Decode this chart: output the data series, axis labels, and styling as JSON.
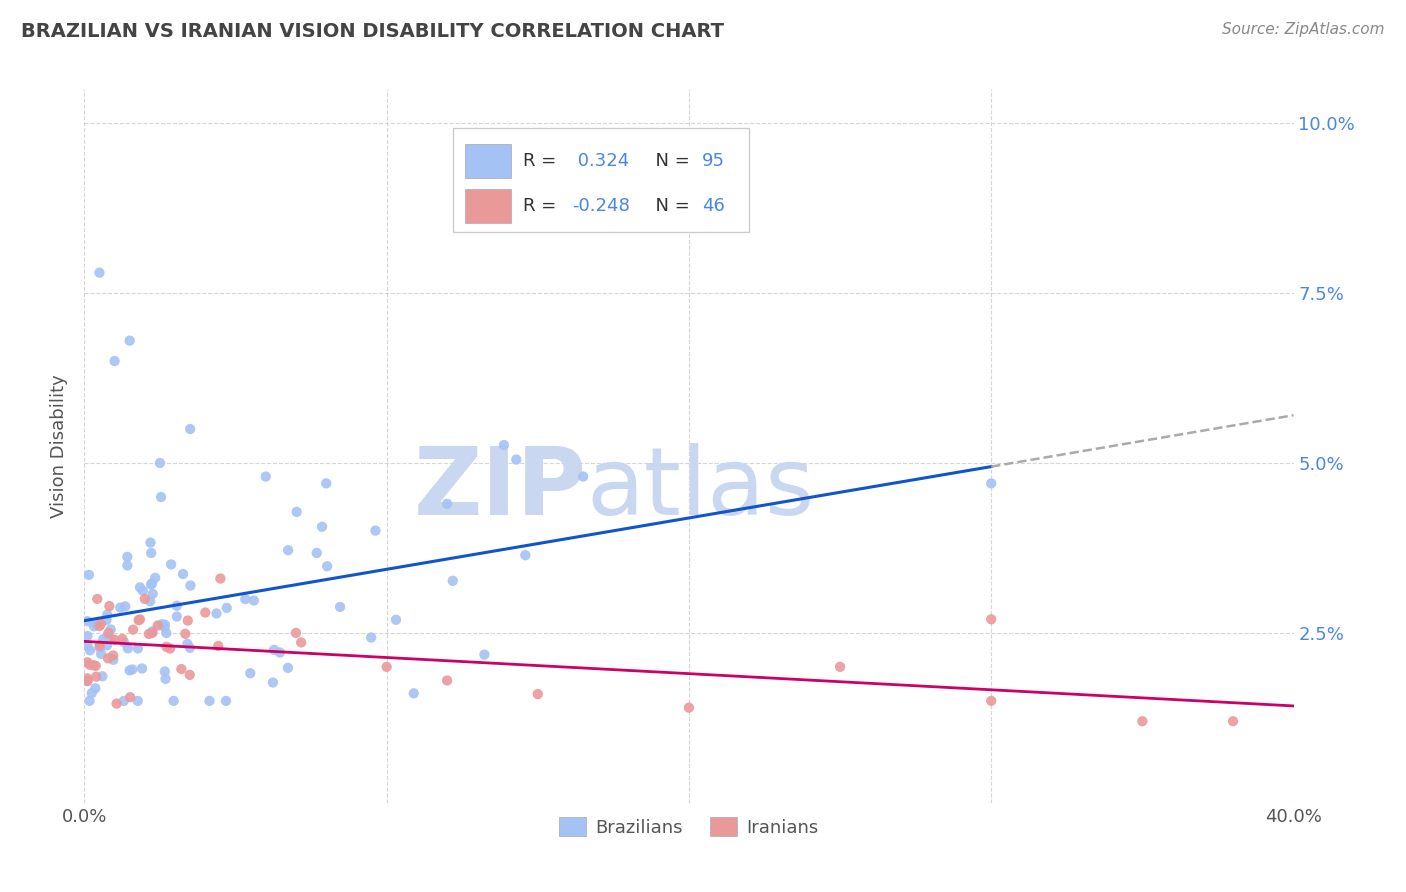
{
  "title": "BRAZILIAN VS IRANIAN VISION DISABILITY CORRELATION CHART",
  "source": "Source: ZipAtlas.com",
  "ylabel": "Vision Disability",
  "xlim": [
    0.0,
    0.4
  ],
  "ylim": [
    0.0,
    0.105
  ],
  "brazil_color": "#a4c2f4",
  "iran_color": "#ea9999",
  "brazil_line_color": "#1155cc",
  "iran_line_color": "#cc0066",
  "brazil_R": 0.324,
  "brazil_N": 95,
  "iran_R": -0.248,
  "iran_N": 46,
  "background_color": "#ffffff",
  "grid_color": "#bbbbbb",
  "watermark_zip": "ZIP",
  "watermark_atlas": "atlas",
  "watermark_color": "#c9d7f0"
}
